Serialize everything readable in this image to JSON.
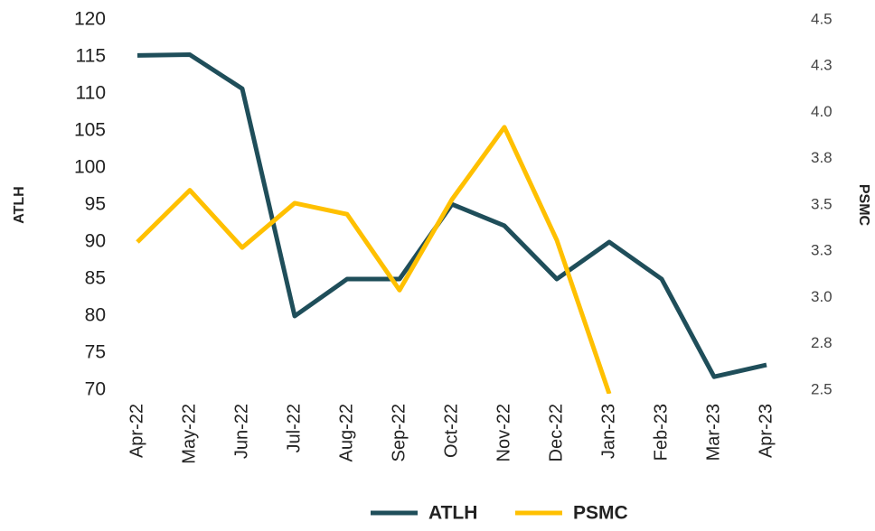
{
  "chart_data": {
    "type": "line",
    "categories": [
      "Apr-22",
      "May-22",
      "Jun-22",
      "Jul-22",
      "Aug-22",
      "Sep-22",
      "Oct-22",
      "Nov-22",
      "Dec-22",
      "Jan-23",
      "Feb-23",
      "Mar-23",
      "Apr-23"
    ],
    "series": [
      {
        "name": "ATLH",
        "color": "#1f4e5a",
        "values": [
          115.2,
          115.3,
          110.7,
          80,
          85,
          85,
          95.1,
          92.2,
          85,
          90,
          85,
          71.8,
          73.4
        ]
      },
      {
        "name": "PSMC",
        "color": "#ffc000",
        "axis": "y2",
        "values": [
          3.3,
          3.58,
          3.27,
          3.51,
          3.45,
          3.04,
          3.53,
          3.92,
          3.31,
          2.48,
          null,
          null,
          null
        ]
      }
    ],
    "ylabel": "ATLH",
    "y2label": "PSMC",
    "ylim": [
      70,
      120
    ],
    "yticks": [
      70,
      75,
      80,
      85,
      90,
      95,
      100,
      105,
      110,
      115,
      120
    ],
    "y2lim": [
      2.5,
      4.5
    ],
    "y2ticks": [
      2.5,
      {
        "value": 2.75,
        "label": "2.8"
      },
      {
        "value": 3,
        "label": "3.0"
      },
      {
        "value": 3.25,
        "label": "3.3"
      },
      3.5,
      {
        "value": 3.75,
        "label": "3.8"
      },
      {
        "value": 4,
        "label": "4.0"
      },
      {
        "value": 4.25,
        "label": "4.3"
      },
      4.5
    ],
    "grid": false,
    "legend": "bottom"
  }
}
